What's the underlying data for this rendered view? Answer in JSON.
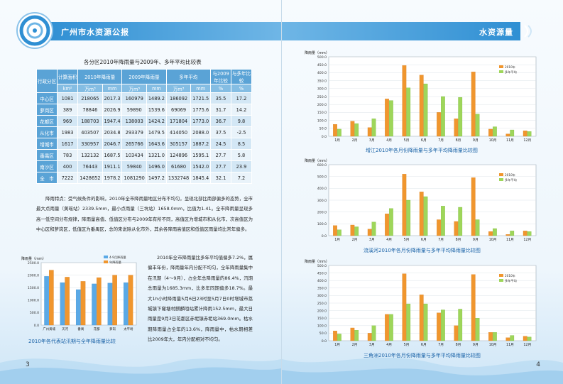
{
  "header": {
    "left_title": "广州市水资源公报",
    "right_title": "水资源量"
  },
  "page_numbers": {
    "left": "3",
    "right": "4"
  },
  "table": {
    "title": "各分区2010年降雨量与2009年、多年平均比较表",
    "headers": {
      "district": "行政分区",
      "area": "计算面积",
      "y2010": "2010年降雨量",
      "y2009": "2009年降雨量",
      "avg": "多年平均",
      "cmp2009": "与2009年比较",
      "cmpavg": "与多年比较"
    },
    "units": [
      "km²",
      "万m³",
      "mm",
      "万m³",
      "mm",
      "万m³",
      "mm",
      "%",
      "%"
    ],
    "rows": [
      [
        "中心区",
        "1081",
        "218065",
        "2017.3",
        "160979",
        "1489.2",
        "186092",
        "1721.5",
        "35.5",
        "17.2"
      ],
      [
        "萝岗区",
        "389",
        "78846",
        "2026.9",
        "59890",
        "1539.6",
        "69069",
        "1775.6",
        "31.7",
        "14.2"
      ],
      [
        "花都区",
        "969",
        "188703",
        "1947.4",
        "138003",
        "1424.2",
        "171804",
        "1773.0",
        "36.7",
        "9.8"
      ],
      [
        "从化市",
        "1983",
        "403507",
        "2034.8",
        "293379",
        "1479.5",
        "414050",
        "2088.0",
        "37.5",
        "-2.5"
      ],
      [
        "增城市",
        "1617",
        "330957",
        "2046.7",
        "265766",
        "1643.6",
        "305157",
        "1887.2",
        "24.5",
        "8.5"
      ],
      [
        "番禺区",
        "783",
        "132132",
        "1687.5",
        "103434",
        "1321.0",
        "124896",
        "1595.1",
        "27.7",
        "5.8"
      ],
      [
        "南沙区",
        "400",
        "76443",
        "1911.1",
        "59840",
        "1496.0",
        "61680",
        "1542.0",
        "27.7",
        "23.9"
      ],
      [
        "全　市",
        "7222",
        "1428652",
        "1978.2",
        "1081290",
        "1497.2",
        "1332748",
        "1845.4",
        "32.1",
        "7.2"
      ]
    ]
  },
  "paragraph1": "降雨特点：受气候条件的影响，2010年全市降雨量地区分布不均匀，呈现北部比南部偏多的态势，全市最大点雨量（黄瑶站）2339.5mm，最小点雨量（三坑站）1658.0mm，比值为1.41。全市降雨量呈现多高一低空间分布规律，降雨量高值、低值区分布与2009年有所不同，高值区为增城市和从化市，次高值区为中心区和萝岗区，低值区为番禺区，总的来说除从化市外，其余各降雨高值区和低值区雨量均比常年偏多。",
  "paragraph2": "2010年全市降雨量比多年平均值偏多7.2%，属偏丰年份，降雨量年内分配不均匀，全年降雨量集中在汛期（4～9月），占全年总降雨量的86.4%，汛期总雨量为1685.3mm，比多年同期偏多18.7%。最大1h小时降雨量5月6日23时至5月7日0时增城市荔城镇下窿塘村麒麟咀站累计降雨152.5mm，最大日雨量是9月3日花都区赤坭镇赤坭站369.0mm。枯水期降雨量占全年的13.6%，降雨量中，枯水期相差比2009年大，年内分配相对不均匀。",
  "colors": {
    "bar_2010": "#f0962e",
    "bar_avg": "#9ed65a",
    "bar_small_blue": "#5aa9e6",
    "accent": "#2f8fd3",
    "caption": "#1c64a8"
  },
  "chart_data": [
    {
      "type": "bar",
      "caption": "2010年各代表站汛期与全年降雨量比较",
      "ylabel": "降雨量（mm）",
      "ylim": [
        0,
        2500
      ],
      "yticks": [
        "0.0",
        "500.0",
        "1000.0",
        "1500.0",
        "2000.0",
        "2500.0"
      ],
      "categories": [
        "广州黄埔",
        "天河",
        "番禺",
        "花都",
        "萝岗",
        "太平场"
      ],
      "series": [
        {
          "name": "4-9月降雨量",
          "values": [
            1950,
            1700,
            1420,
            1650,
            1680,
            1700
          ]
        },
        {
          "name": "年降雨量",
          "values": [
            2200,
            1920,
            1750,
            1900,
            2000,
            2000
          ]
        }
      ]
    },
    {
      "type": "bar",
      "caption": "增江2010年各月份降雨量与多年平均降雨量比较图",
      "ylabel": "降雨量（mm）",
      "ylim": [
        0,
        500
      ],
      "yticks": [
        "0.0",
        "50.0",
        "100.0",
        "150.0",
        "200.0",
        "250.0",
        "300.0",
        "350.0",
        "400.0",
        "450.0",
        "500.0"
      ],
      "categories": [
        "1月",
        "2月",
        "3月",
        "4月",
        "5月",
        "6月",
        "7月",
        "8月",
        "9月",
        "10月",
        "11月",
        "12月"
      ],
      "series": [
        {
          "name": "2010年",
          "values": [
            75,
            95,
            55,
            235,
            445,
            385,
            150,
            110,
            405,
            45,
            15,
            35
          ]
        },
        {
          "name": "多年平均",
          "values": [
            45,
            80,
            110,
            225,
            305,
            330,
            250,
            245,
            140,
            60,
            40,
            30
          ]
        }
      ]
    },
    {
      "type": "bar",
      "caption": "流溪河2010年各月份降雨量与多年平均降雨量比较图",
      "ylabel": "降雨量（mm）",
      "ylim": [
        0,
        600
      ],
      "yticks": [
        "0.0",
        "100.0",
        "200.0",
        "300.0",
        "400.0",
        "500.0",
        "600.0"
      ],
      "categories": [
        "1月",
        "2月",
        "3月",
        "4月",
        "5月",
        "6月",
        "7月",
        "8月",
        "9月",
        "10月",
        "11月",
        "12月"
      ],
      "series": [
        {
          "name": "2010年",
          "values": [
            85,
            90,
            55,
            185,
            520,
            370,
            135,
            120,
            490,
            35,
            10,
            40
          ]
        },
        {
          "name": "多年平均",
          "values": [
            50,
            75,
            115,
            230,
            300,
            330,
            250,
            240,
            135,
            60,
            40,
            35
          ]
        }
      ]
    },
    {
      "type": "bar",
      "caption": "三角洲2010年各月份降雨量与多年平均降雨量比较图",
      "ylabel": "降雨量（mm）",
      "ylim": [
        0,
        500
      ],
      "yticks": [
        "0.0",
        "50.0",
        "100.0",
        "150.0",
        "200.0",
        "250.0",
        "300.0",
        "350.0",
        "400.0",
        "450.0",
        "500.0"
      ],
      "categories": [
        "1月",
        "2月",
        "3月",
        "4月",
        "5月",
        "6月",
        "7月",
        "8月",
        "9月",
        "10月",
        "11月",
        "12月"
      ],
      "series": [
        {
          "name": "2010年",
          "values": [
            65,
            85,
            50,
            175,
            445,
            305,
            185,
            100,
            440,
            55,
            20,
            30
          ]
        },
        {
          "name": "多年平均",
          "values": [
            45,
            70,
            100,
            175,
            245,
            245,
            205,
            210,
            150,
            55,
            35,
            25
          ]
        }
      ]
    }
  ]
}
